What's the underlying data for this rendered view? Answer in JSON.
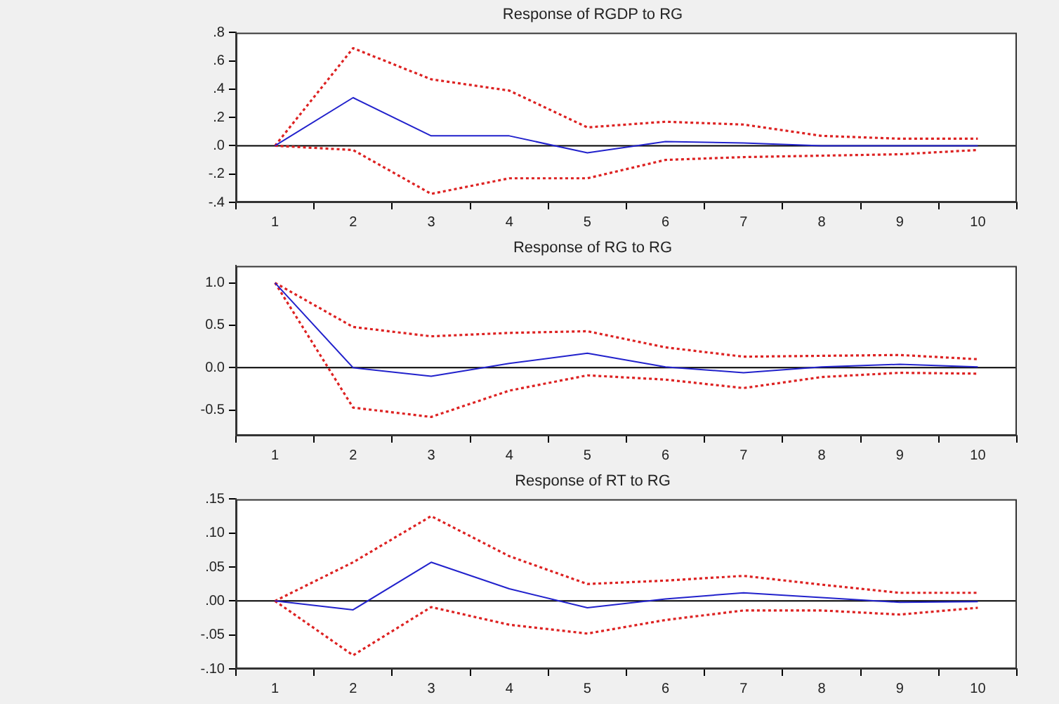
{
  "chart_data": [
    {
      "type": "line",
      "title": "Response of RGDP to RG",
      "categories": [
        "1",
        "2",
        "3",
        "4",
        "5",
        "6",
        "7",
        "8",
        "9",
        "10"
      ],
      "ylim": [
        -0.4,
        0.8
      ],
      "yticks": [
        {
          "value": 0.8,
          "label": ".8"
        },
        {
          "value": 0.6,
          "label": ".6"
        },
        {
          "value": 0.4,
          "label": ".4"
        },
        {
          "value": 0.2,
          "label": ".2"
        },
        {
          "value": 0,
          "label": ".0"
        },
        {
          "value": -0.2,
          "label": "-.2"
        },
        {
          "value": -0.4,
          "label": "-.4"
        }
      ],
      "ref_lines": [
        {
          "axis": "y",
          "value": 0,
          "color": "#000000"
        }
      ],
      "grid": false,
      "legend": false,
      "marker": "none",
      "series": [
        {
          "color": "#2222cc",
          "line_style": "solid",
          "values": [
            0,
            0.34,
            0.07,
            0.07,
            -0.05,
            0.03,
            0.02,
            0,
            0,
            0
          ]
        },
        {
          "color": "#dd2222",
          "line_style": "dotted",
          "values": [
            0,
            0.69,
            0.47,
            0.39,
            0.13,
            0.17,
            0.15,
            0.07,
            0.05,
            0.05
          ]
        },
        {
          "color": "#dd2222",
          "line_style": "dotted",
          "values": [
            0,
            -0.03,
            -0.34,
            -0.23,
            -0.23,
            -0.1,
            -0.08,
            -0.07,
            -0.06,
            -0.03
          ]
        }
      ]
    },
    {
      "type": "line",
      "title": "Response of RG to RG",
      "categories": [
        "1",
        "2",
        "3",
        "4",
        "5",
        "6",
        "7",
        "8",
        "9",
        "10"
      ],
      "ylim": [
        -0.8,
        1.2
      ],
      "yticks": [
        {
          "value": 1,
          "label": "1.0"
        },
        {
          "value": 0.5,
          "label": "0.5"
        },
        {
          "value": 0,
          "label": "0.0"
        },
        {
          "value": -0.5,
          "label": "-0.5"
        }
      ],
      "ref_lines": [
        {
          "axis": "y",
          "value": 0,
          "color": "#000000"
        }
      ],
      "grid": false,
      "legend": false,
      "marker": "none",
      "series": [
        {
          "color": "#2222cc",
          "line_style": "solid",
          "values": [
            1,
            0,
            -0.1,
            0.05,
            0.17,
            0.01,
            -0.06,
            0.01,
            0.04,
            0.01
          ]
        },
        {
          "color": "#dd2222",
          "line_style": "dotted",
          "values": [
            1,
            0.48,
            0.37,
            0.41,
            0.43,
            0.24,
            0.13,
            0.14,
            0.15,
            0.1
          ]
        },
        {
          "color": "#dd2222",
          "line_style": "dotted",
          "values": [
            1,
            -0.47,
            -0.58,
            -0.27,
            -0.09,
            -0.14,
            -0.24,
            -0.11,
            -0.06,
            -0.07
          ]
        }
      ]
    },
    {
      "type": "line",
      "title": "Response of RT to RG",
      "categories": [
        "1",
        "2",
        "3",
        "4",
        "5",
        "6",
        "7",
        "8",
        "9",
        "10"
      ],
      "ylim": [
        -0.1,
        0.15
      ],
      "yticks": [
        {
          "value": 0.15,
          "label": ".15"
        },
        {
          "value": 0.1,
          "label": ".10"
        },
        {
          "value": 0.05,
          "label": ".05"
        },
        {
          "value": 0,
          "label": ".00"
        },
        {
          "value": -0.05,
          "label": "-.05"
        },
        {
          "value": -0.1,
          "label": "-.10"
        }
      ],
      "ref_lines": [
        {
          "axis": "y",
          "value": 0,
          "color": "#000000"
        }
      ],
      "grid": false,
      "legend": false,
      "marker": "none",
      "series": [
        {
          "color": "#2222cc",
          "line_style": "solid",
          "values": [
            0,
            -0.013,
            0.057,
            0.018,
            -0.01,
            0.003,
            0.012,
            0.005,
            -0.002,
            -0.001
          ]
        },
        {
          "color": "#dd2222",
          "line_style": "dotted",
          "values": [
            0,
            0.057,
            0.125,
            0.066,
            0.025,
            0.03,
            0.037,
            0.024,
            0.012,
            0.012
          ]
        },
        {
          "color": "#dd2222",
          "line_style": "dotted",
          "values": [
            0,
            -0.08,
            -0.009,
            -0.035,
            -0.048,
            -0.028,
            -0.014,
            -0.014,
            -0.02,
            -0.01
          ]
        }
      ]
    }
  ]
}
